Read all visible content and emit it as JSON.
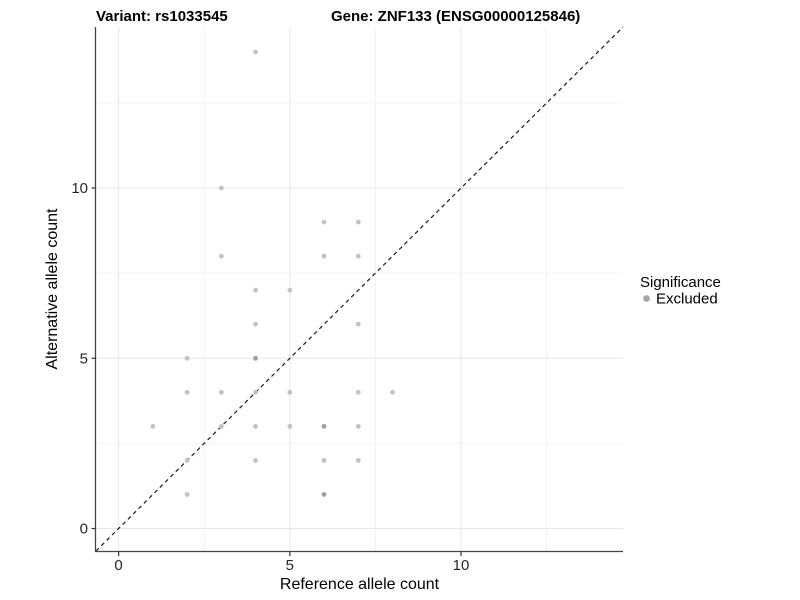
{
  "chart_data": {
    "type": "scatter",
    "title_left": "Variant: rs1033545",
    "title_right": "Gene: ZNF133 (ENSG00000125846)",
    "xlabel": "Reference allele count",
    "ylabel": "Alternative allele count",
    "xlim": [
      -0.66,
      14.73
    ],
    "ylim": [
      -0.66,
      14.73
    ],
    "x_ticks": [
      0,
      5,
      10
    ],
    "x_tick_labels": [
      "0",
      "5",
      "10"
    ],
    "y_ticks": [
      0,
      5,
      10
    ],
    "y_tick_labels": [
      "0",
      "5",
      "10"
    ],
    "x_minor": [
      2.5,
      7.5,
      12.5
    ],
    "y_minor": [
      2.5,
      7.5,
      12.5
    ],
    "grid": true,
    "identity_line": {
      "slope": 1,
      "intercept": 0,
      "style": "dashed",
      "color": "#1a1a1a"
    },
    "series": [
      {
        "name": "Excluded",
        "color": "#c2c2c2",
        "overplot_color": "#9f9f9f",
        "points": [
          [
            4,
            14,
            1
          ],
          [
            3,
            10,
            1
          ],
          [
            6,
            9,
            1
          ],
          [
            7,
            9,
            1
          ],
          [
            3,
            8,
            1
          ],
          [
            6,
            8,
            1
          ],
          [
            7,
            8,
            1
          ],
          [
            4,
            7,
            1
          ],
          [
            5,
            7,
            1
          ],
          [
            4,
            6,
            1
          ],
          [
            7,
            6,
            1
          ],
          [
            2,
            5,
            1
          ],
          [
            4,
            5,
            2
          ],
          [
            2,
            4,
            1
          ],
          [
            3,
            4,
            1
          ],
          [
            4,
            4,
            1
          ],
          [
            5,
            4,
            1
          ],
          [
            7,
            4,
            1
          ],
          [
            8,
            4,
            1
          ],
          [
            1,
            3,
            1
          ],
          [
            3,
            3,
            1
          ],
          [
            4,
            3,
            1
          ],
          [
            5,
            3,
            1
          ],
          [
            6,
            3,
            2
          ],
          [
            7,
            3,
            1
          ],
          [
            2,
            2,
            1
          ],
          [
            4,
            2,
            1
          ],
          [
            6,
            2,
            1
          ],
          [
            7,
            2,
            1
          ],
          [
            2,
            1,
            1
          ],
          [
            6,
            1,
            2
          ]
        ]
      }
    ],
    "legend": {
      "title": "Significance",
      "position": "right",
      "items": [
        {
          "label": "Excluded",
          "color": "#a6a6a6"
        }
      ]
    },
    "colors": {
      "grid_major": "#e7e7e7",
      "grid_minor": "#f2f2f2",
      "axis": "#444444",
      "background": "#ffffff"
    }
  }
}
